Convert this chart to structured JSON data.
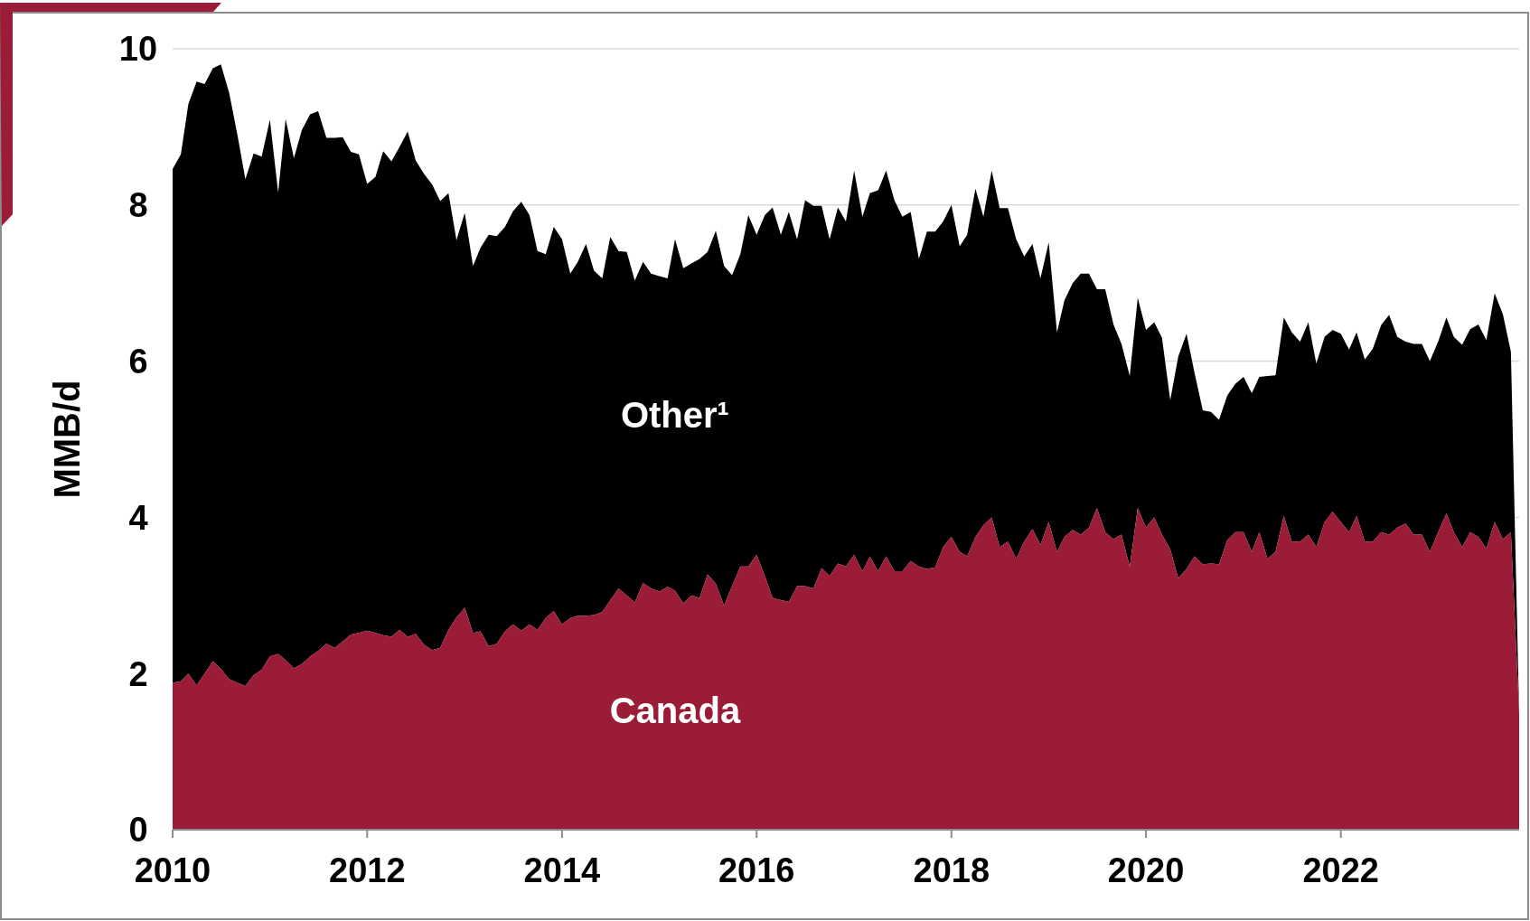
{
  "chart_data": {
    "type": "area",
    "stacked": true,
    "ylabel": "MMB/d",
    "x": [
      "2010-01",
      "2010-02",
      "2010-03",
      "2010-04",
      "2010-05",
      "2010-06",
      "2010-07",
      "2010-08",
      "2010-09",
      "2010-10",
      "2010-11",
      "2010-12",
      "2011-01",
      "2011-02",
      "2011-03",
      "2011-04",
      "2011-05",
      "2011-06",
      "2011-07",
      "2011-08",
      "2011-09",
      "2011-10",
      "2011-11",
      "2011-12",
      "2012-01",
      "2012-02",
      "2012-03",
      "2012-04",
      "2012-05",
      "2012-06",
      "2012-07",
      "2012-08",
      "2012-09",
      "2012-10",
      "2012-11",
      "2012-12",
      "2013-01",
      "2013-02",
      "2013-03",
      "2013-04",
      "2013-05",
      "2013-06",
      "2013-07",
      "2013-08",
      "2013-09",
      "2013-10",
      "2013-11",
      "2013-12",
      "2014-01",
      "2014-02",
      "2014-03",
      "2014-04",
      "2014-05",
      "2014-06",
      "2014-07",
      "2014-08",
      "2014-09",
      "2014-10",
      "2014-11",
      "2014-12",
      "2015-01",
      "2015-02",
      "2015-03",
      "2015-04",
      "2015-05",
      "2015-06",
      "2015-07",
      "2015-08",
      "2015-09",
      "2015-10",
      "2015-11",
      "2015-12",
      "2016-01",
      "2016-02",
      "2016-03",
      "2016-04",
      "2016-05",
      "2016-06",
      "2016-07",
      "2016-08",
      "2016-09",
      "2016-10",
      "2016-11",
      "2016-12",
      "2017-01",
      "2017-02",
      "2017-03",
      "2017-04",
      "2017-05",
      "2017-06",
      "2017-07",
      "2017-08",
      "2017-09",
      "2017-10",
      "2017-11",
      "2017-12",
      "2018-01",
      "2018-02",
      "2018-03",
      "2018-04",
      "2018-05",
      "2018-06",
      "2018-07",
      "2018-08",
      "2018-09",
      "2018-10",
      "2018-11",
      "2018-12",
      "2019-01",
      "2019-02",
      "2019-03",
      "2019-04",
      "2019-05",
      "2019-06",
      "2019-07",
      "2019-08",
      "2019-09",
      "2019-10",
      "2019-11",
      "2019-12",
      "2020-01",
      "2020-02",
      "2020-03",
      "2020-04",
      "2020-05",
      "2020-06",
      "2020-07",
      "2020-08",
      "2020-09",
      "2020-10",
      "2020-11",
      "2020-12",
      "2021-01",
      "2021-02",
      "2021-03",
      "2021-04",
      "2021-05",
      "2021-06",
      "2021-07",
      "2021-08",
      "2021-09",
      "2021-10",
      "2021-11",
      "2021-12",
      "2022-01",
      "2022-02",
      "2022-03",
      "2022-04",
      "2022-05",
      "2022-06",
      "2022-07",
      "2022-08",
      "2022-09",
      "2022-10",
      "2022-11",
      "2022-12",
      "2023-01",
      "2023-02",
      "2023-03",
      "2023-04",
      "2023-05",
      "2023-06",
      "2023-07",
      "2023-08",
      "2023-09",
      "2023-10",
      "2023-11"
    ],
    "series": [
      {
        "name": "Canada",
        "color": "#9b1c37",
        "values": [
          1.88,
          1.9,
          2.0,
          1.85,
          2.0,
          2.16,
          2.06,
          1.93,
          1.88,
          1.84,
          1.98,
          2.05,
          2.22,
          2.25,
          2.17,
          2.07,
          2.12,
          2.22,
          2.29,
          2.38,
          2.33,
          2.41,
          2.5,
          2.52,
          2.55,
          2.52,
          2.49,
          2.47,
          2.56,
          2.47,
          2.51,
          2.37,
          2.3,
          2.33,
          2.56,
          2.72,
          2.84,
          2.52,
          2.54,
          2.35,
          2.38,
          2.54,
          2.63,
          2.55,
          2.63,
          2.56,
          2.71,
          2.8,
          2.63,
          2.71,
          2.74,
          2.74,
          2.75,
          2.79,
          2.94,
          3.09,
          3.0,
          2.91,
          3.16,
          3.09,
          3.05,
          3.11,
          3.06,
          2.9,
          3.0,
          2.97,
          3.27,
          3.15,
          2.87,
          3.12,
          3.37,
          3.37,
          3.52,
          3.25,
          2.97,
          2.94,
          2.92,
          3.12,
          3.12,
          3.09,
          3.35,
          3.25,
          3.41,
          3.37,
          3.52,
          3.31,
          3.5,
          3.31,
          3.5,
          3.31,
          3.31,
          3.44,
          3.37,
          3.34,
          3.36,
          3.62,
          3.75,
          3.56,
          3.5,
          3.75,
          3.9,
          4.0,
          3.62,
          3.69,
          3.47,
          3.69,
          3.85,
          3.65,
          3.94,
          3.56,
          3.75,
          3.84,
          3.78,
          3.87,
          4.12,
          3.81,
          3.72,
          3.78,
          3.37,
          4.12,
          3.87,
          4.0,
          3.78,
          3.59,
          3.22,
          3.34,
          3.5,
          3.4,
          3.41,
          3.4,
          3.71,
          3.81,
          3.81,
          3.56,
          3.81,
          3.47,
          3.56,
          4.02,
          3.69,
          3.69,
          3.78,
          3.62,
          3.94,
          4.07,
          3.94,
          3.81,
          4.02,
          3.69,
          3.69,
          3.81,
          3.78,
          3.87,
          3.92,
          3.78,
          3.78,
          3.56,
          3.81,
          4.05,
          3.81,
          3.62,
          3.81,
          3.75,
          3.6,
          3.94,
          3.72,
          3.81,
          1.5
        ]
      },
      {
        "name": "Other¹",
        "color": "#000000",
        "values": [
          6.58,
          6.75,
          7.29,
          7.73,
          7.55,
          7.59,
          7.74,
          7.51,
          7.02,
          6.49,
          6.68,
          6.57,
          6.87,
          5.91,
          6.93,
          6.53,
          6.84,
          6.94,
          6.91,
          6.48,
          6.53,
          6.46,
          6.18,
          6.13,
          5.72,
          5.84,
          6.2,
          6.09,
          6.18,
          6.47,
          6.06,
          6.03,
          5.96,
          5.72,
          5.59,
          4.83,
          5.06,
          4.7,
          4.91,
          5.27,
          5.22,
          5.18,
          5.29,
          5.49,
          5.24,
          4.85,
          4.66,
          4.92,
          4.93,
          4.41,
          4.53,
          4.76,
          4.41,
          4.27,
          4.65,
          4.32,
          4.4,
          4.12,
          4.11,
          4.03,
          4.04,
          3.95,
          4.5,
          4.29,
          4.25,
          4.34,
          4.13,
          4.52,
          4.35,
          3.98,
          4.0,
          4.5,
          4.1,
          4.62,
          5.0,
          4.68,
          4.99,
          4.44,
          4.94,
          4.9,
          4.64,
          4.31,
          4.56,
          4.42,
          4.92,
          4.54,
          4.65,
          4.88,
          4.94,
          4.75,
          4.54,
          4.47,
          3.94,
          4.32,
          4.3,
          4.17,
          4.25,
          3.91,
          4.12,
          4.46,
          3.95,
          4.44,
          4.34,
          4.27,
          4.09,
          3.65,
          3.65,
          3.41,
          3.58,
          2.81,
          3.03,
          3.16,
          3.34,
          3.25,
          2.8,
          3.11,
          2.75,
          2.44,
          2.44,
          2.69,
          2.53,
          2.5,
          2.52,
          1.91,
          2.84,
          3.01,
          2.35,
          1.97,
          1.94,
          1.85,
          1.85,
          1.9,
          1.99,
          2.03,
          1.99,
          2.34,
          2.26,
          2.54,
          2.68,
          2.56,
          2.72,
          2.35,
          2.37,
          2.33,
          2.41,
          2.34,
          2.35,
          2.33,
          2.47,
          2.65,
          2.81,
          2.44,
          2.33,
          2.44,
          2.44,
          2.44,
          2.44,
          2.51,
          2.5,
          2.59,
          2.6,
          2.72,
          2.67,
          2.93,
          2.88,
          2.31,
          0
        ]
      }
    ],
    "xlim": [
      "2010-01",
      "2023-11"
    ],
    "xticks": [
      "2010",
      "2012",
      "2014",
      "2016",
      "2018",
      "2020",
      "2022"
    ],
    "ylim": [
      0,
      10
    ],
    "yticks": [
      0,
      2,
      4,
      6,
      8,
      10
    ],
    "grid": "y"
  }
}
